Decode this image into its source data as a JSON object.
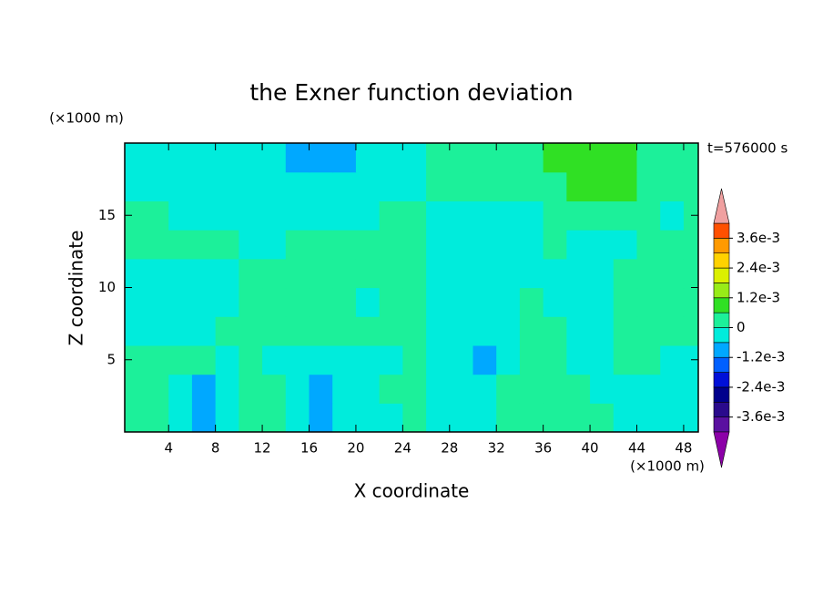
{
  "chart_data": {
    "type": "contour",
    "title": "the Exner function deviation",
    "xlabel": "X coordinate",
    "ylabel": "Z coordinate",
    "x_unit": "(×1000 m)",
    "y_unit": "(×1000 m)",
    "annotation": "t=576000 s",
    "xlim": [
      0.25,
      49.25
    ],
    "ylim": [
      0,
      20
    ],
    "xticks": [
      4,
      8,
      12,
      16,
      20,
      24,
      28,
      32,
      36,
      40,
      44,
      48
    ],
    "yticks": [
      5,
      10,
      15
    ],
    "x": [
      1,
      3,
      5,
      7,
      9,
      11,
      13,
      15,
      17,
      19,
      21,
      23,
      25,
      27,
      29,
      31,
      33,
      35,
      37,
      39,
      41,
      43,
      45,
      47,
      49
    ],
    "y": [
      1,
      3,
      5,
      7,
      9,
      11,
      13,
      15,
      17,
      19
    ],
    "z": [
      [
        0.0003,
        0.0003,
        -0.0003,
        -0.0009,
        -0.0003,
        0.0003,
        0.0003,
        -0.0003,
        -0.0009,
        -0.0003,
        -0.0003,
        -0.0003,
        0.0003,
        -0.0003,
        -0.0003,
        -0.0003,
        0.0003,
        0.0003,
        0.0003,
        0.0003,
        0.0003,
        -0.0003,
        -0.0003,
        -0.0003,
        -0.0003
      ],
      [
        0.0003,
        0.0003,
        -0.0003,
        -0.0009,
        -0.0003,
        0.0003,
        0.0003,
        -0.0003,
        -0.0009,
        -0.0003,
        -0.0003,
        0.0003,
        0.0003,
        -0.0003,
        -0.0003,
        -0.0003,
        0.0003,
        0.0003,
        0.0003,
        0.0003,
        -0.0003,
        -0.0003,
        -0.0003,
        -0.0003,
        -0.0003
      ],
      [
        0.0003,
        0.0003,
        0.0003,
        0.0003,
        -0.0003,
        0.0003,
        -0.0003,
        -0.0003,
        -0.0003,
        -0.0003,
        -0.0003,
        -0.0003,
        0.0003,
        -0.0003,
        -0.0003,
        -0.0009,
        -0.0003,
        0.0003,
        0.0003,
        -0.0003,
        -0.0003,
        0.0003,
        0.0003,
        -0.0003,
        -0.0003
      ],
      [
        -0.0003,
        -0.0003,
        -0.0003,
        -0.0003,
        0.0003,
        0.0003,
        0.0003,
        0.0003,
        0.0003,
        0.0003,
        0.0003,
        0.0003,
        0.0003,
        -0.0003,
        -0.0003,
        -0.0003,
        -0.0003,
        0.0003,
        0.0003,
        -0.0003,
        -0.0003,
        0.0003,
        0.0003,
        0.0003,
        0.0003
      ],
      [
        -0.0003,
        -0.0003,
        -0.0003,
        -0.0003,
        -0.0003,
        0.0003,
        0.0003,
        0.0003,
        0.0003,
        0.0003,
        -0.0003,
        0.0003,
        0.0003,
        -0.0003,
        -0.0003,
        -0.0003,
        -0.0003,
        0.0003,
        -0.0003,
        -0.0003,
        -0.0003,
        0.0003,
        0.0003,
        0.0003,
        0.0003
      ],
      [
        -0.0003,
        -0.0003,
        -0.0003,
        -0.0003,
        -0.0003,
        0.0003,
        0.0003,
        0.0003,
        0.0003,
        0.0003,
        0.0003,
        0.0003,
        0.0003,
        -0.0003,
        -0.0003,
        -0.0003,
        -0.0003,
        -0.0003,
        -0.0003,
        -0.0003,
        -0.0003,
        0.0003,
        0.0003,
        0.0003,
        0.0003
      ],
      [
        0.0003,
        0.0003,
        0.0003,
        0.0003,
        0.0003,
        -0.0003,
        -0.0003,
        0.0003,
        0.0003,
        0.0003,
        0.0003,
        0.0003,
        0.0003,
        -0.0003,
        -0.0003,
        -0.0003,
        -0.0003,
        -0.0003,
        0.0003,
        -0.0003,
        -0.0003,
        -0.0003,
        0.0003,
        0.0003,
        0.0003
      ],
      [
        0.0003,
        0.0003,
        -0.0003,
        -0.0003,
        -0.0003,
        -0.0003,
        -0.0003,
        -0.0003,
        -0.0003,
        -0.0003,
        -0.0003,
        0.0003,
        0.0003,
        -0.0003,
        -0.0003,
        -0.0003,
        -0.0003,
        -0.0003,
        0.0003,
        0.0003,
        0.0003,
        0.0003,
        0.0003,
        -0.0003,
        0.0003
      ],
      [
        -0.0003,
        -0.0003,
        -0.0003,
        -0.0003,
        -0.0003,
        -0.0003,
        -0.0003,
        -0.0003,
        -0.0003,
        -0.0003,
        -0.0003,
        -0.0003,
        -0.0003,
        0.0003,
        0.0003,
        0.0003,
        0.0003,
        0.0003,
        0.0003,
        0.0009,
        0.0009,
        0.0009,
        0.0003,
        0.0003,
        0.0003
      ],
      [
        -0.0003,
        -0.0003,
        -0.0003,
        -0.0003,
        -0.0003,
        -0.0003,
        -0.0003,
        -0.0009,
        -0.0009,
        -0.0009,
        -0.0003,
        -0.0003,
        -0.0003,
        0.0003,
        0.0003,
        0.0003,
        0.0003,
        0.0003,
        0.0009,
        0.0009,
        0.0009,
        0.0009,
        0.0003,
        0.0003,
        0.0003
      ]
    ],
    "levels": [
      -0.0042,
      -0.0036,
      -0.003,
      -0.0024,
      -0.0018,
      -0.0012,
      -0.0006,
      0,
      0.0006,
      0.0012,
      0.0018,
      0.0024,
      0.003,
      0.0036,
      0.0042
    ],
    "colors": [
      "#5a10a0",
      "#2a0a8c",
      "#00008c",
      "#0010d8",
      "#0060ff",
      "#00a8ff",
      "#00ecdc",
      "#1cf09a",
      "#30e024",
      "#98ec18",
      "#dcf000",
      "#ffd200",
      "#ff9a00",
      "#ff5000",
      "#f00000"
    ],
    "under_color": "#8c00a8",
    "over_color": "#f0a0a0",
    "colorbar_ticks": [
      {
        "value": 0.0036,
        "label": "3.6e-3"
      },
      {
        "value": 0.0024,
        "label": "2.4e-3"
      },
      {
        "value": 0.0012,
        "label": "1.2e-3"
      },
      0,
      {
        "value": -0.0012,
        "label": "-1.2e-3"
      },
      {
        "value": -0.0024,
        "label": "-2.4e-3"
      },
      {
        "value": -0.0036,
        "label": "-3.6e-3"
      }
    ]
  }
}
